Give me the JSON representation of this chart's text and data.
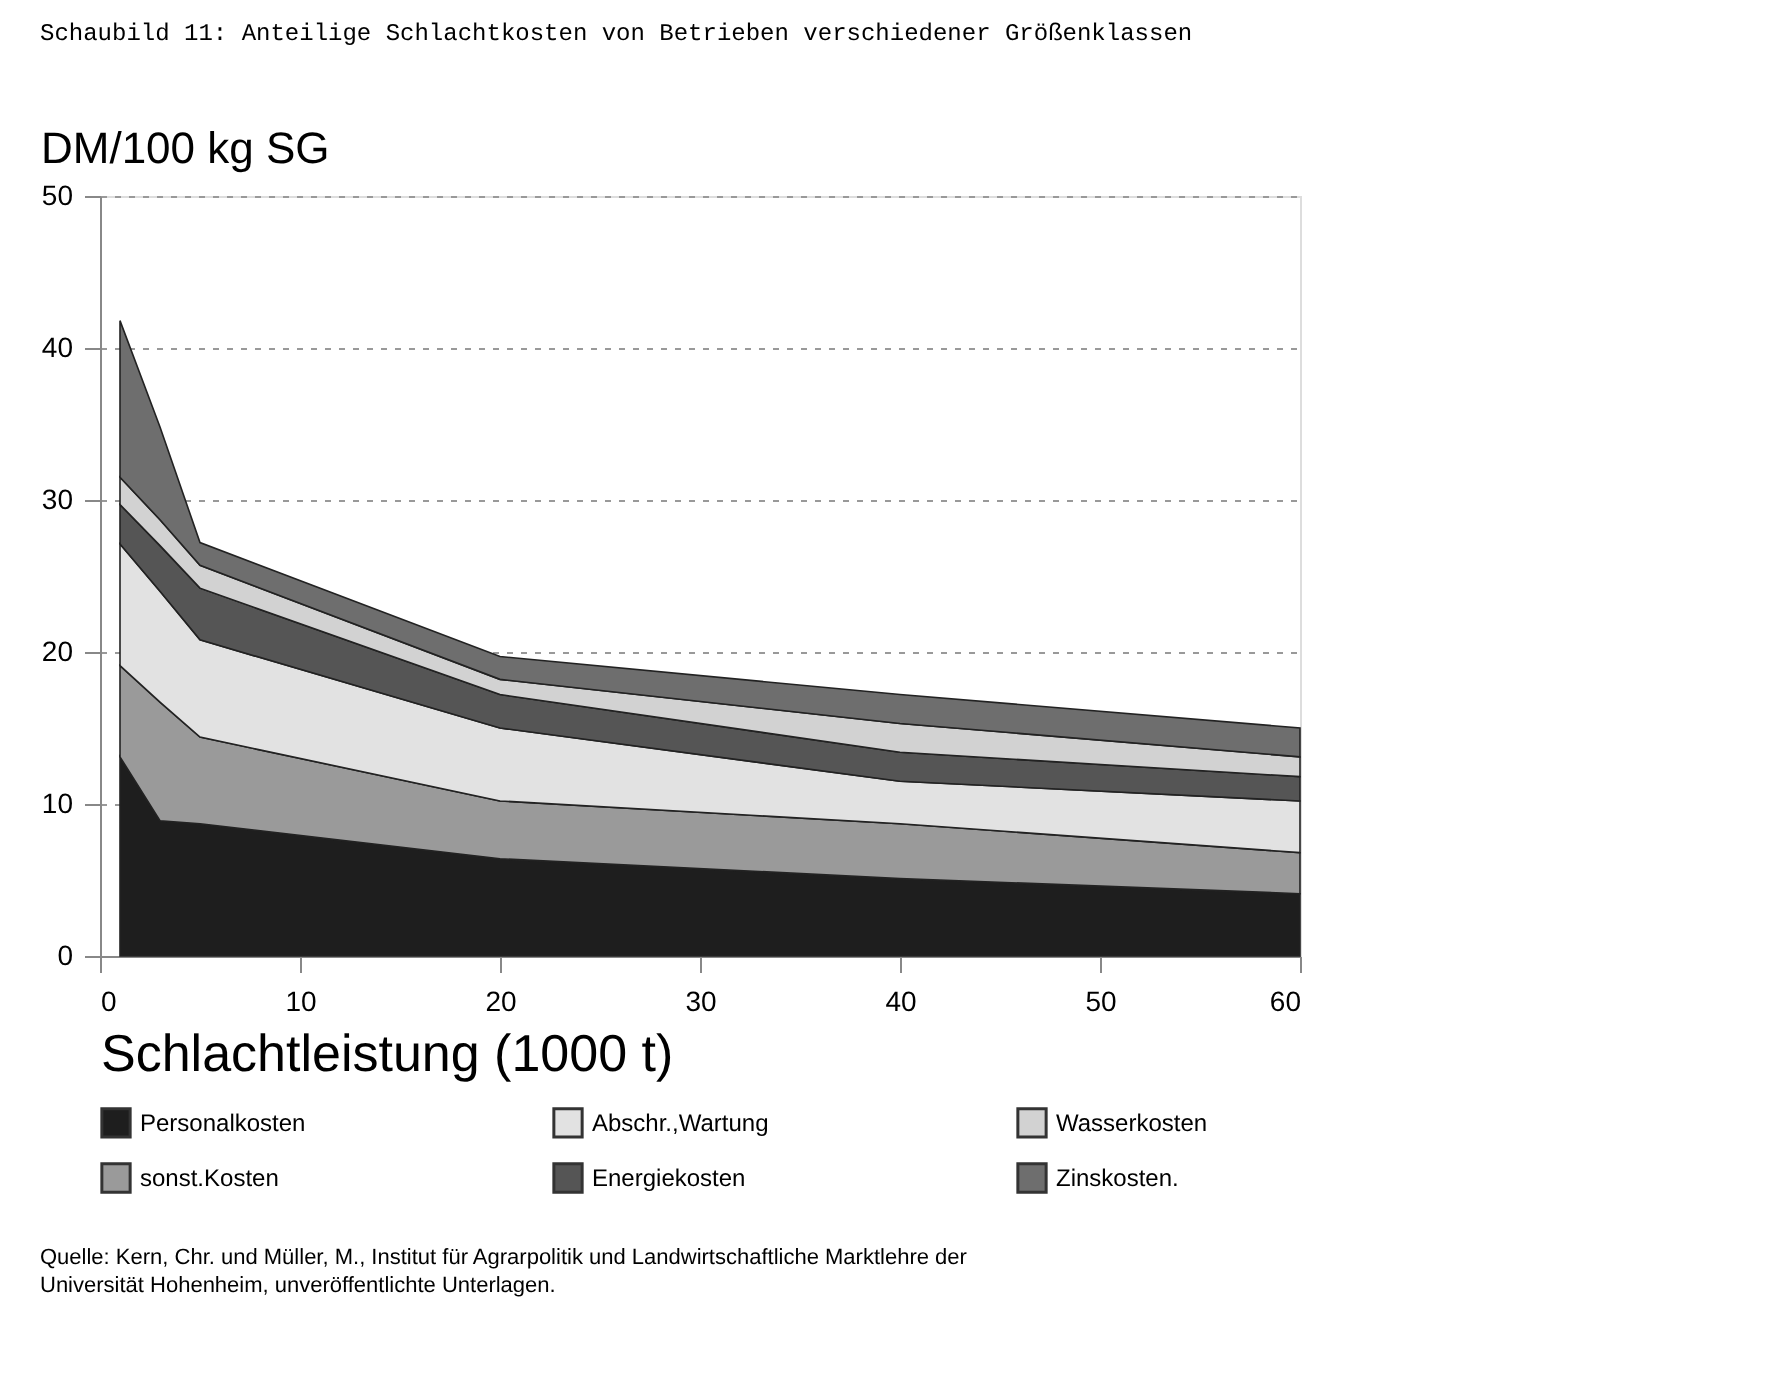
{
  "chart_data": {
    "type": "area",
    "stacked": true,
    "title": "Schaubild 11: Anteilige Schlachtkosten von Betrieben verschiedener Größenklassen",
    "ylabel": "DM/100 kg SG",
    "xlabel": "Schlachtleistung (1000 t)",
    "x": [
      1,
      3,
      5,
      20,
      40,
      60
    ],
    "series": [
      {
        "name": "Personalkosten",
        "color": "#1e1e1e",
        "values": [
          13.1,
          8.9,
          8.7,
          6.4,
          5.1,
          4.1
        ]
      },
      {
        "name": "sonst.Kosten",
        "color": "#9a9a9a",
        "values": [
          6.0,
          7.8,
          5.7,
          3.8,
          3.6,
          2.7
        ]
      },
      {
        "name": "Abschr.,Wartung",
        "color": "#e2e2e2",
        "values": [
          8.0,
          7.3,
          6.4,
          4.8,
          2.8,
          3.4
        ]
      },
      {
        "name": "Energiekosten",
        "color": "#555555",
        "values": [
          2.6,
          3.0,
          3.4,
          2.2,
          1.9,
          1.6
        ]
      },
      {
        "name": "Wasserkosten",
        "color": "#d2d2d2",
        "values": [
          1.8,
          1.7,
          1.5,
          1.0,
          1.9,
          1.3
        ]
      },
      {
        "name": "Zinskosten.",
        "color": "#6e6e6e",
        "values": [
          10.3,
          6.1,
          1.5,
          1.5,
          1.9,
          1.9
        ]
      }
    ],
    "xlim": [
      0,
      60
    ],
    "xticks": [
      0,
      10,
      20,
      30,
      40,
      50,
      60
    ],
    "ylim": [
      0,
      50
    ],
    "yticks": [
      0,
      10,
      20,
      30,
      40,
      50
    ],
    "grid": "y",
    "legend": "bottom",
    "annotations": [
      "Quelle: Kern, Chr. und Müller, M., Institut für Agrarpolitik und Landwirtschaftliche Marktlehre der Universität Hohenheim, unveröffentlichte Unterlagen."
    ]
  }
}
